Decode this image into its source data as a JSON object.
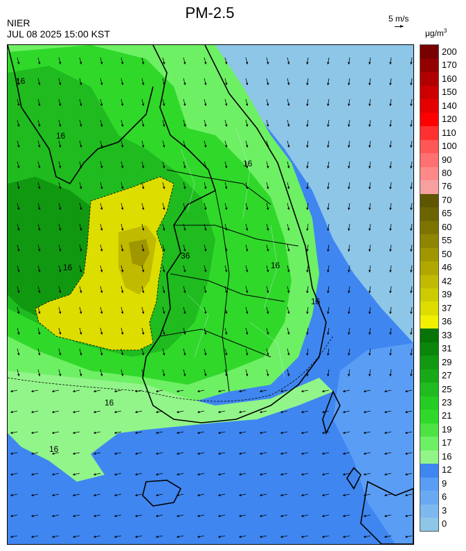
{
  "header": {
    "title": "PM-2.5",
    "agency": "NIER",
    "timestamp": "JUL 08 2025 15:00 KST",
    "wind_reference": "5 m/s",
    "unit_prefix": "μg/m",
    "unit_exponent": "3"
  },
  "legend": {
    "levels": [
      "0",
      "3",
      "6",
      "9",
      "12",
      "16",
      "17",
      "19",
      "21",
      "23",
      "25",
      "27",
      "29",
      "31",
      "33",
      "36",
      "37",
      "39",
      "42",
      "46",
      "50",
      "55",
      "60",
      "65",
      "70",
      "76",
      "80",
      "90",
      "100",
      "110",
      "120",
      "140",
      "150",
      "160",
      "170",
      "200"
    ],
    "colors": [
      "#8ec6e8",
      "#7db8ef",
      "#6aaaf2",
      "#5a9df5",
      "#3f86f0",
      "#92f58a",
      "#6ef064",
      "#4ee244",
      "#30d82a",
      "#25cc22",
      "#1fbb1f",
      "#17a917",
      "#119811",
      "#0a860a",
      "#067406",
      "#f0f000",
      "#dddd00",
      "#cccc00",
      "#c0ba00",
      "#b0a800",
      "#9f9600",
      "#8e8500",
      "#7d7400",
      "#6c6400",
      "#5e5600",
      "#f6a0a0",
      "#ff8888",
      "#ff7070",
      "#ff5656",
      "#ff3030",
      "#ff0000",
      "#e50000",
      "#cc0000",
      "#b00000",
      "#940000",
      "#780000"
    ]
  },
  "map": {
    "contour_labels": [
      "16",
      "16",
      "16",
      "16",
      "36",
      "16",
      "16",
      "16",
      "16"
    ],
    "wind_direction": "south-southwest"
  }
}
